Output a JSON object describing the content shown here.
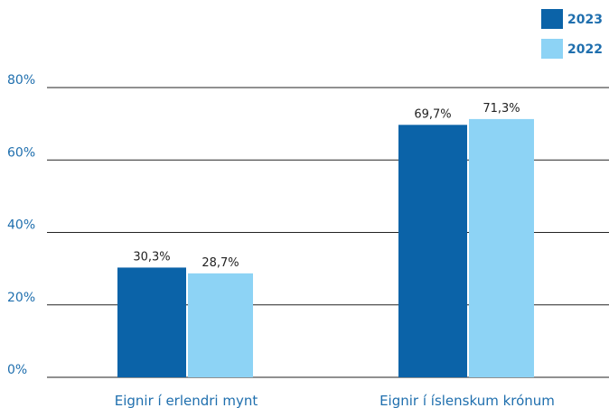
{
  "chart_data": {
    "type": "bar",
    "categories": [
      "Eignir í erlendri mynt",
      "Eignir í íslenskum krónum"
    ],
    "series": [
      {
        "name": "2023",
        "values": [
          30.3,
          69.7
        ],
        "labels": [
          "30,3%",
          "69,7%"
        ],
        "color": "#0b63a8"
      },
      {
        "name": "2022",
        "values": [
          28.7,
          71.3
        ],
        "labels": [
          "28,7%",
          "71,3%"
        ],
        "color": "#8dd3f5"
      }
    ],
    "ylim": [
      0,
      80
    ],
    "yticks": [
      0,
      20,
      40,
      60,
      80
    ],
    "ytick_labels": [
      "0%",
      "20%",
      "40%",
      "60%",
      "80%"
    ],
    "grid": true,
    "legend_position": "top-right",
    "xlabel": "",
    "ylabel": ""
  }
}
